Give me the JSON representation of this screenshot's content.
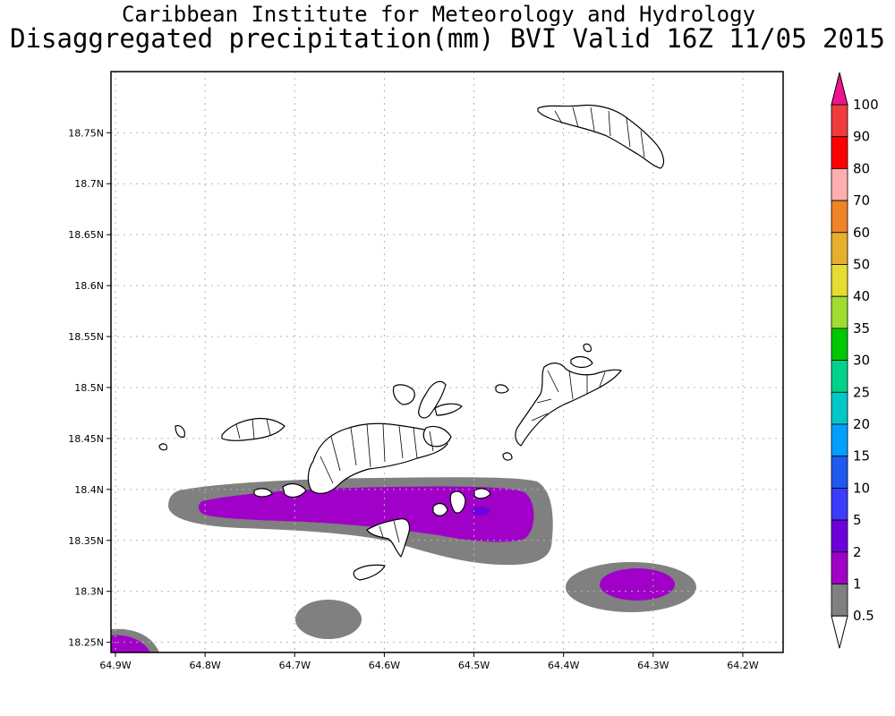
{
  "title": {
    "line1": "Caribbean Institute for Meteorology and Hydrology",
    "line2": "Disaggregated precipitation(mm) BVI Valid 16Z 11/05 2015"
  },
  "axes": {
    "lat_ticks": [
      "18.75N",
      "18.7N",
      "18.65N",
      "18.6N",
      "18.55N",
      "18.5N",
      "18.45N",
      "18.4N",
      "18.35N",
      "18.3N",
      "18.25N"
    ],
    "lon_ticks": [
      "64.9W",
      "64.8W",
      "64.7W",
      "64.6W",
      "64.5W",
      "64.4W",
      "64.3W",
      "64.2W"
    ],
    "lat_range": [
      18.24,
      18.81
    ],
    "lon_range": [
      -64.905,
      -64.155
    ],
    "grid": true
  },
  "legend": {
    "placement": "right",
    "levels": [
      {
        "label": "0.5",
        "color": "#ffffff"
      },
      {
        "label": "1",
        "color": "#808080"
      },
      {
        "label": "2",
        "color": "#a000c8"
      },
      {
        "label": "5",
        "color": "#6e00dc"
      },
      {
        "label": "10",
        "color": "#3c3cff"
      },
      {
        "label": "15",
        "color": "#1e5af0"
      },
      {
        "label": "20",
        "color": "#00a0ff"
      },
      {
        "label": "25",
        "color": "#00c8c8"
      },
      {
        "label": "30",
        "color": "#00d28c"
      },
      {
        "label": "35",
        "color": "#00c800"
      },
      {
        "label": "40",
        "color": "#a0dc32"
      },
      {
        "label": "50",
        "color": "#e6dc32"
      },
      {
        "label": "60",
        "color": "#e6af2d"
      },
      {
        "label": "70",
        "color": "#f08228"
      },
      {
        "label": "80",
        "color": "#ffafaf"
      },
      {
        "label": "90",
        "color": "#ff0000"
      },
      {
        "label": "100",
        "color": "#f03c3c"
      }
    ],
    "top_arrow_color": "#f0148c"
  }
}
